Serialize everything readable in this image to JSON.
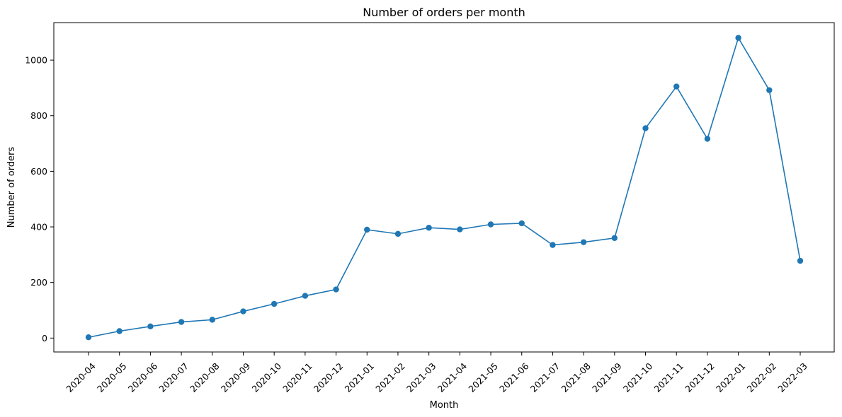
{
  "chart_data": {
    "type": "line",
    "title": "Number of orders per month",
    "xlabel": "Month",
    "ylabel": "Number of orders",
    "x": [
      "2020-04",
      "2020-05",
      "2020-06",
      "2020-07",
      "2020-08",
      "2020-09",
      "2020-10",
      "2020-11",
      "2020-12",
      "2021-01",
      "2021-02",
      "2021-03",
      "2021-04",
      "2021-05",
      "2021-06",
      "2021-07",
      "2021-08",
      "2021-09",
      "2021-10",
      "2021-11",
      "2021-12",
      "2022-01",
      "2022-02",
      "2022-03"
    ],
    "series": [
      {
        "values": [
          3,
          25,
          42,
          58,
          66,
          96,
          123,
          152,
          175,
          390,
          375,
          397,
          391,
          409,
          413,
          335,
          345,
          360,
          755,
          905,
          717,
          1080,
          892,
          278
        ],
        "color": "#1f77b4",
        "marker": "circle"
      }
    ],
    "yticks": [
      0,
      200,
      400,
      600,
      800,
      1000
    ],
    "ylim": [
      -50,
      1135
    ],
    "grid": false,
    "legend": "none",
    "x_tick_rotation": "45 degrees"
  }
}
